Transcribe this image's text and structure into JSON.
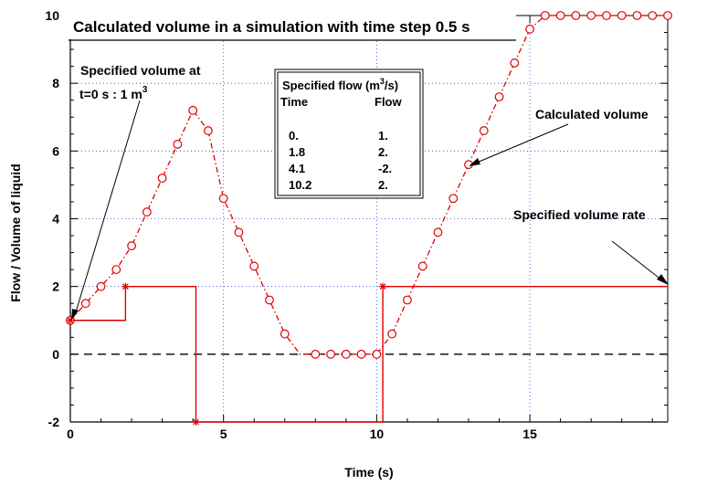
{
  "chart_data": {
    "type": "line",
    "title": "Calculated volume in a simulation with time step 0.5 s",
    "xlabel": "Time (s)",
    "ylabel": "Flow  / Volume of liquid",
    "xlim": [
      0,
      19.5
    ],
    "ylim": [
      -2,
      10
    ],
    "x_ticks": [
      "0",
      "5",
      "10",
      "15"
    ],
    "x_tick_values": [
      0,
      5,
      10,
      15
    ],
    "y_ticks": [
      "-2",
      "0",
      "2",
      "4",
      "6",
      "8",
      "10"
    ],
    "y_tick_values": [
      -2,
      0,
      2,
      4,
      6,
      8,
      10
    ],
    "grid": true,
    "series": [
      {
        "name": "Calculated volume",
        "style": "dash-dot with circle markers",
        "color": "#e00000",
        "x": [
          0,
          0.5,
          1,
          1.5,
          2,
          2.5,
          3,
          3.5,
          4,
          4.5,
          5,
          5.5,
          6,
          6.5,
          7,
          7.5,
          8,
          8.5,
          9,
          9.5,
          10,
          10.5,
          11,
          11.5,
          12,
          12.5,
          13,
          13.5,
          14,
          14.5,
          15,
          15.5,
          16,
          16.5,
          17,
          17.5,
          18,
          18.5,
          19,
          19.5
        ],
        "values": [
          1,
          1.5,
          2,
          2.5,
          3.2,
          4.2,
          5.2,
          6.2,
          7.2,
          6.6,
          4.6,
          3.6,
          2.6,
          1.6,
          0.6,
          0,
          0,
          0,
          0,
          0,
          0,
          0.6,
          1.6,
          2.6,
          3.6,
          4.6,
          5.6,
          6.6,
          7.6,
          8.6,
          9.6,
          10,
          10,
          10,
          10,
          10,
          10,
          10,
          10,
          10
        ],
        "markers": [
          0,
          1,
          2,
          3,
          4,
          5,
          6,
          7,
          8,
          9,
          10,
          11,
          12,
          13,
          14,
          16,
          17,
          18,
          19,
          20,
          21,
          22,
          23,
          24,
          25,
          26,
          27,
          28,
          29,
          30,
          31,
          32,
          33,
          34,
          35,
          36,
          37,
          38,
          39
        ]
      },
      {
        "name": "Specified volume rate",
        "style": "step",
        "color": "#e00000",
        "x": [
          0,
          1.8,
          4.1,
          10.2,
          19.5
        ],
        "values": [
          1,
          2,
          -2,
          2,
          2
        ],
        "star_markers": [
          0,
          1,
          2,
          3
        ]
      }
    ],
    "annotations": {
      "initial_volume_line1": "Specified volume at",
      "initial_volume_line2": "t=0 s :  1 m",
      "initial_volume_sup": "3",
      "calculated_volume": "Calculated volume",
      "specified_volume_rate": "Specified volume rate"
    },
    "table": {
      "title_prefix": "Specified flow (m",
      "title_sup": "3",
      "title_suffix": "/s)",
      "col_time": "Time",
      "col_flow": "Flow",
      "rows": [
        {
          "time": "0.",
          "flow": "1."
        },
        {
          "time": "1.8",
          "flow": "2."
        },
        {
          "time": "4.1",
          "flow": "-2."
        },
        {
          "time": "10.2",
          "flow": "2."
        }
      ]
    }
  }
}
